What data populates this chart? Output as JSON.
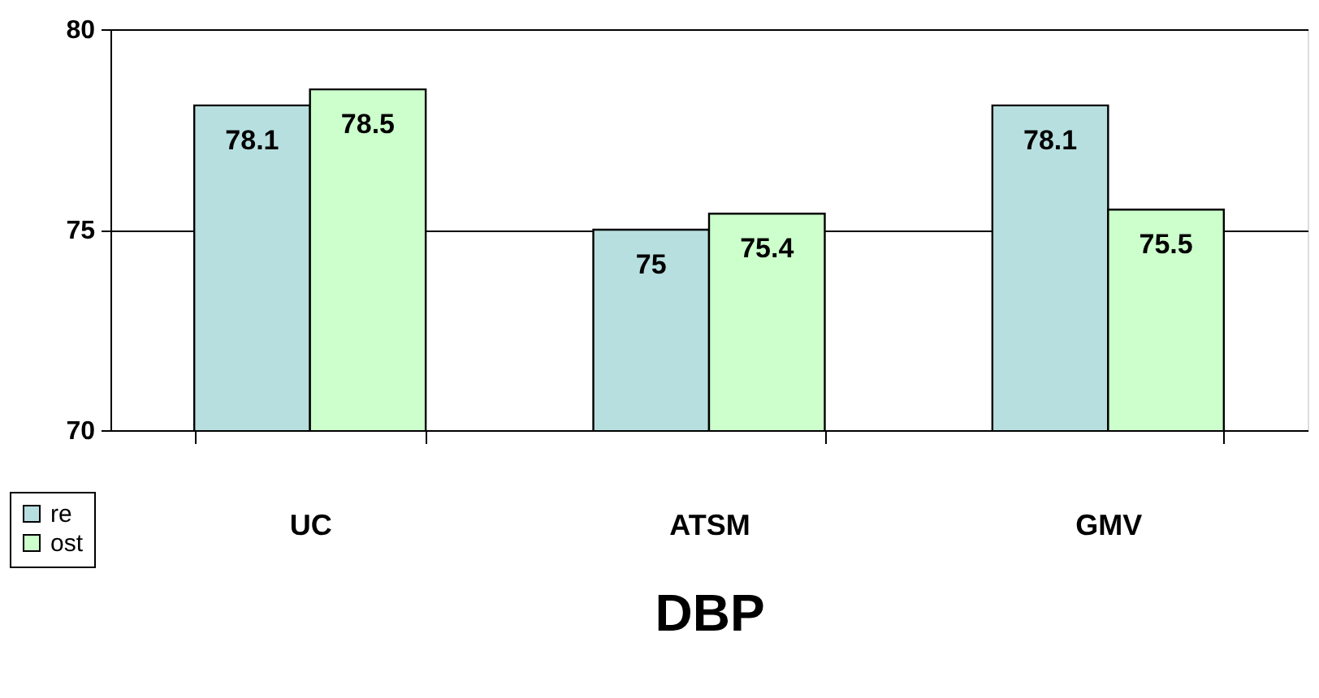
{
  "chart_data": {
    "type": "bar",
    "xlabel": "DBP",
    "categories": [
      "UC",
      "ATSM",
      "GMV"
    ],
    "series": [
      {
        "name": "re",
        "color": "#b8dfe0",
        "values": [
          78.1,
          75,
          78.1
        ]
      },
      {
        "name": "ost",
        "color": "#ccffcc",
        "values": [
          78.5,
          75.4,
          75.5
        ]
      }
    ],
    "ylim": [
      70,
      80
    ],
    "yticks": [
      70,
      75,
      80
    ],
    "grid": "y",
    "legend": "bottom left",
    "data_labels": true
  }
}
